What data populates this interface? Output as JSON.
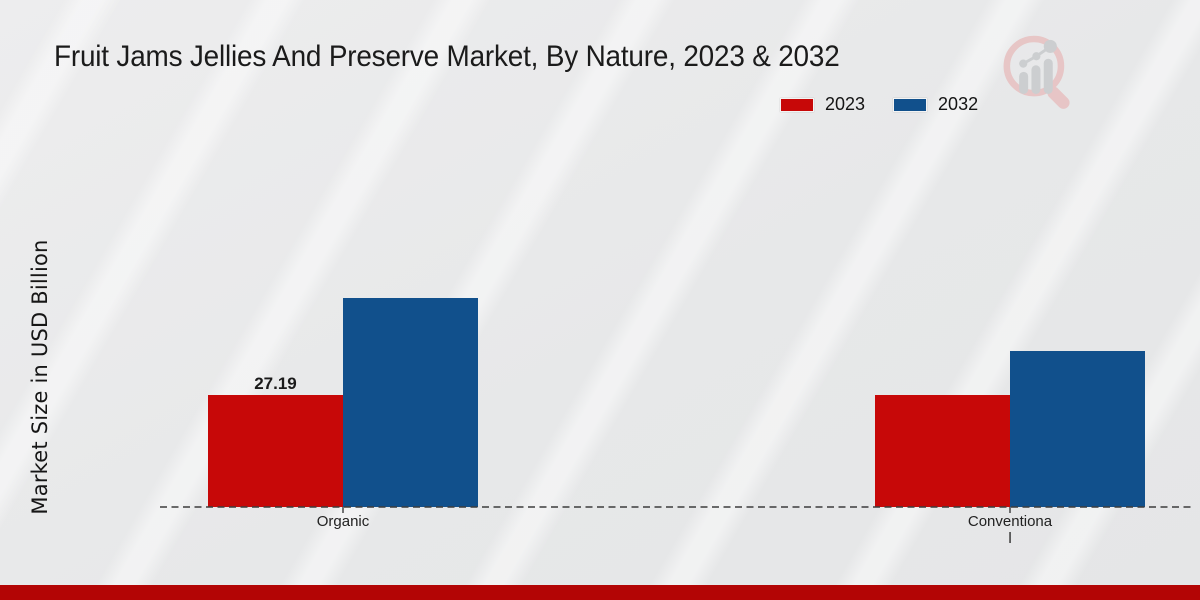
{
  "title": "Fruit Jams Jellies And Preserve Market, By Nature, 2023 & 2032",
  "watermark_icon": "market-research-magnifier-bar-chart-logo",
  "chart_data": {
    "type": "bar",
    "title": "Fruit Jams Jellies And Preserve Market, By Nature, 2023 & 2032",
    "ylabel": "Market Size in USD Billion",
    "xlabel": "",
    "categories": [
      "Organic",
      "Conventional"
    ],
    "categories_display": [
      {
        "lines": [
          "Organic"
        ]
      },
      {
        "lines": [
          "Conventiona",
          "l"
        ]
      }
    ],
    "series": [
      {
        "name": "2023",
        "color": "#c70808",
        "values": [
          27.19,
          27.2
        ]
      },
      {
        "name": "2032",
        "color": "#11508c",
        "values": [
          50.7,
          37.9
        ]
      }
    ],
    "data_labels": [
      {
        "series": "2023",
        "category": "Organic",
        "text": "27.19"
      }
    ],
    "ylim": [
      0,
      80
    ],
    "grid": false,
    "legend_position": "top-right",
    "baseline_style": "dashed"
  },
  "colors": {
    "bar_2023": "#c70808",
    "bar_2032": "#11508c",
    "footer_bar": "#b30505",
    "background": "#e8e9ea"
  }
}
